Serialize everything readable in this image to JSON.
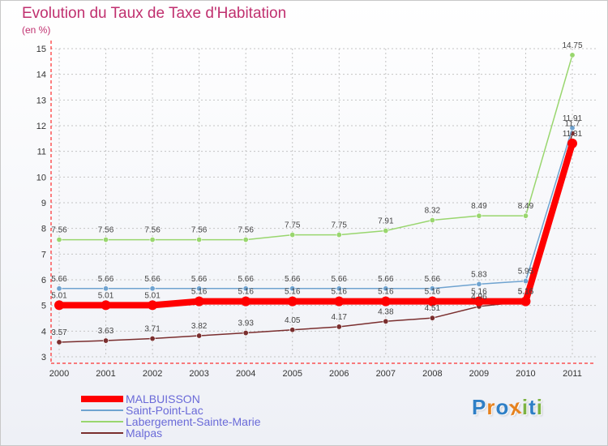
{
  "header": {
    "title": "Evolution du Taux de Taxe d'Habitation",
    "unit": "(en %)"
  },
  "logo": {
    "letters": [
      "P",
      "r",
      "o",
      "x",
      "i",
      "t",
      "i"
    ],
    "colors": [
      "#2e7fc6",
      "#e6821e",
      "#2e7fc6",
      "#e6821e",
      "#7cb342",
      "#2e7fc6",
      "#7cb342"
    ]
  },
  "chart_data": {
    "type": "line",
    "x": [
      "2000",
      "2001",
      "2002",
      "2003",
      "2004",
      "2005",
      "2006",
      "2007",
      "2008",
      "2009",
      "2010",
      "2011"
    ],
    "ylim": [
      3,
      15
    ],
    "yticks": [
      3,
      4,
      5,
      6,
      7,
      8,
      9,
      10,
      11,
      12,
      13,
      14,
      15
    ],
    "grid": true,
    "legend_position": "bottom-left",
    "series": [
      {
        "name": "MALBUISSON",
        "color": "#ff0000",
        "values": [
          5.01,
          5.01,
          5.01,
          5.16,
          5.16,
          5.16,
          5.16,
          5.16,
          5.16,
          5.16,
          5.16,
          11.31
        ],
        "labels": [
          "5.01",
          "5.01",
          "5.01",
          "5.16",
          "5.16",
          "5.16",
          "5.16",
          "5.16",
          "5.16",
          "5.16",
          "5.16",
          "11.31"
        ]
      },
      {
        "name": "Saint-Point-Lac",
        "color": "#6fa3d0",
        "values": [
          5.66,
          5.66,
          5.66,
          5.66,
          5.66,
          5.66,
          5.66,
          5.66,
          5.66,
          5.83,
          5.95,
          11.91
        ],
        "labels": [
          "5.66",
          "5.66",
          "5.66",
          "5.66",
          "5.66",
          "5.66",
          "5.66",
          "5.66",
          "5.66",
          "5.83",
          "5.95",
          "11.91"
        ]
      },
      {
        "name": "Labergement-Sainte-Marie",
        "color": "#99d66e",
        "values": [
          7.56,
          7.56,
          7.56,
          7.56,
          7.56,
          7.75,
          7.75,
          7.91,
          8.32,
          8.49,
          8.49,
          14.75
        ],
        "labels": [
          "7.56",
          "7.56",
          "7.56",
          "7.56",
          "7.56",
          "7.75",
          "7.75",
          "7.91",
          "8.32",
          "8.49",
          "8.49",
          "14.75"
        ]
      },
      {
        "name": "Malpas",
        "color": "#7a2e2e",
        "values": [
          3.57,
          3.63,
          3.71,
          3.82,
          3.93,
          4.05,
          4.17,
          4.38,
          4.51,
          4.96,
          5.16,
          11.7
        ],
        "labels": [
          "3.57",
          "3.63",
          "3.71",
          "3.82",
          "3.93",
          "4.05",
          "4.17",
          "4.38",
          "4.51",
          "4.96",
          "5.16",
          "11.7"
        ]
      }
    ]
  }
}
